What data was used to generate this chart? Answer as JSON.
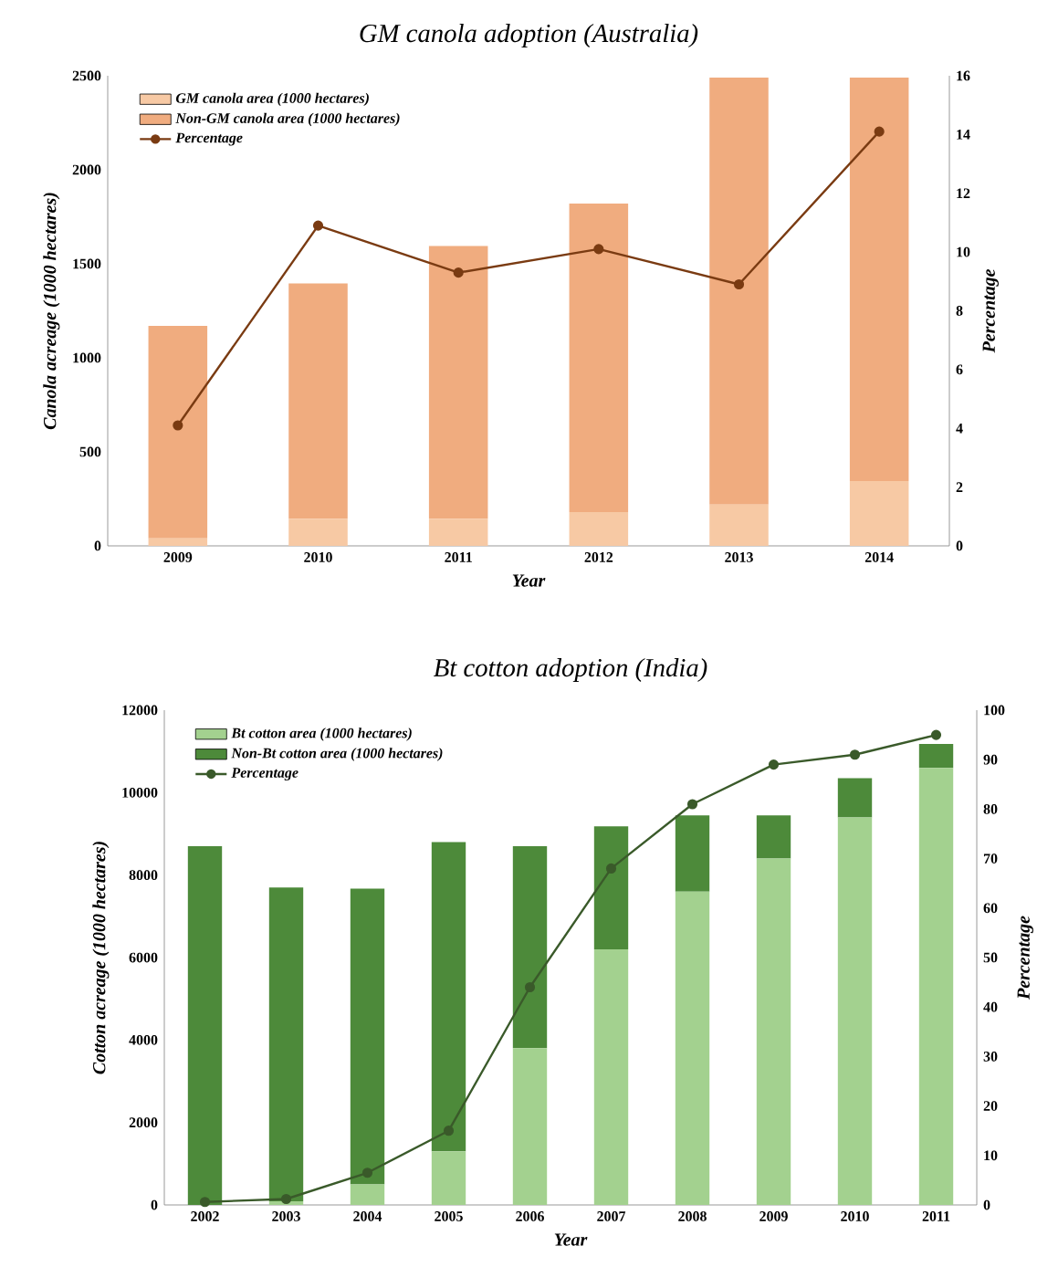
{
  "chart_data": [
    {
      "type": "bar",
      "title": "GM canola adoption (Australia)",
      "xlabel": "Year",
      "ylabel": "Canola acreage (1000 hectares)",
      "y2label": "Percentage",
      "categories": [
        "2009",
        "2010",
        "2011",
        "2012",
        "2013",
        "2014"
      ],
      "stacked": true,
      "legend": "top left",
      "ylim": [
        0,
        2500
      ],
      "yticks": [
        0,
        500,
        1000,
        1500,
        2000,
        2500
      ],
      "y2lim": [
        0,
        16
      ],
      "y2ticks": [
        0,
        2,
        4,
        6,
        8,
        10,
        12,
        14,
        16
      ],
      "series": [
        {
          "name": "GM canola area (1000 hectares)",
          "color": "#f7c9a4",
          "values": [
            40,
            145,
            145,
            180,
            220,
            345
          ]
        },
        {
          "name": "Non-GM canola area (1000 hectares)",
          "color": "#f0ac7f",
          "values": [
            1130,
            1250,
            1450,
            1640,
            2270,
            2145
          ]
        },
        {
          "name": "Percentage",
          "type": "line",
          "axis": "y2",
          "marker": "circle",
          "color": "#7a3b12",
          "values": [
            4.1,
            10.9,
            9.3,
            10.1,
            8.9,
            14.1
          ]
        }
      ]
    },
    {
      "type": "bar",
      "title": "Bt cotton adoption (India)",
      "xlabel": "Year",
      "ylabel": "Cotton acreage (1000 hectares)",
      "y2label": "Percentage",
      "categories": [
        "2002",
        "2003",
        "2004",
        "2005",
        "2006",
        "2007",
        "2008",
        "2009",
        "2010",
        "2011"
      ],
      "stacked": true,
      "legend": "top left",
      "ylim": [
        0,
        12000
      ],
      "yticks": [
        0,
        2000,
        4000,
        6000,
        8000,
        10000,
        12000
      ],
      "y2lim": [
        0,
        100
      ],
      "y2ticks": [
        0,
        10,
        20,
        30,
        40,
        50,
        60,
        70,
        80,
        90,
        100
      ],
      "series": [
        {
          "name": "Bt cotton area (1000 hectares)",
          "color": "#a3d18f",
          "values": [
            null,
            90,
            500,
            1300,
            3800,
            6200,
            7600,
            8400,
            9400,
            10600
          ]
        },
        {
          "name": "Non-Bt cotton area (1000 hectares)",
          "color": "#4d8a3a",
          "values": [
            8700,
            7610,
            7170,
            7500,
            4900,
            2980,
            1850,
            1050,
            950,
            580
          ]
        },
        {
          "name": "Percentage",
          "type": "line",
          "axis": "y2",
          "marker": "circle",
          "color": "#3a5a2a",
          "values": [
            0.6,
            1.2,
            6.5,
            15,
            44,
            68,
            81,
            89,
            91,
            95
          ]
        }
      ]
    }
  ]
}
